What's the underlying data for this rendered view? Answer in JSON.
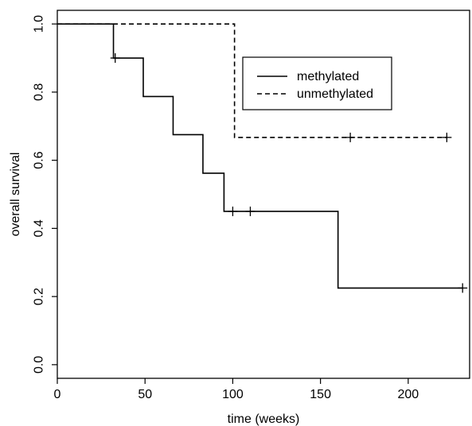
{
  "chart_data": {
    "type": "line",
    "title": "",
    "xlabel": "time (weeks)",
    "ylabel": "overall survival",
    "xlim": [
      0,
      235
    ],
    "ylim": [
      -0.04,
      1.04
    ],
    "x_ticks": [
      0,
      50,
      100,
      150,
      200
    ],
    "y_ticks": [
      0.0,
      0.2,
      0.4,
      0.6,
      0.8,
      1.0
    ],
    "x_tick_labels": [
      "0",
      "50",
      "100",
      "150",
      "200"
    ],
    "y_tick_labels": [
      "0.0",
      "0.2",
      "0.4",
      "0.6",
      "0.8",
      "1.0"
    ],
    "grid": false,
    "legend_position": "top-right",
    "series": [
      {
        "name": "methylated",
        "line_style": "solid",
        "color": "#000000",
        "steps": [
          [
            0,
            1.0
          ],
          [
            32,
            0.9
          ],
          [
            49,
            0.787
          ],
          [
            66,
            0.675
          ],
          [
            83,
            0.562
          ],
          [
            95,
            0.45
          ],
          [
            160,
            0.225
          ],
          [
            231,
            0.225
          ]
        ],
        "censored": [
          [
            33,
            0.9
          ],
          [
            100,
            0.45
          ],
          [
            110,
            0.45
          ],
          [
            231,
            0.225
          ]
        ]
      },
      {
        "name": "unmethylated",
        "line_style": "dashed",
        "color": "#000000",
        "steps": [
          [
            0,
            1.0
          ],
          [
            101,
            0.667
          ],
          [
            222,
            0.667
          ]
        ],
        "censored": [
          [
            167,
            0.667
          ],
          [
            222,
            0.667
          ]
        ]
      }
    ]
  }
}
